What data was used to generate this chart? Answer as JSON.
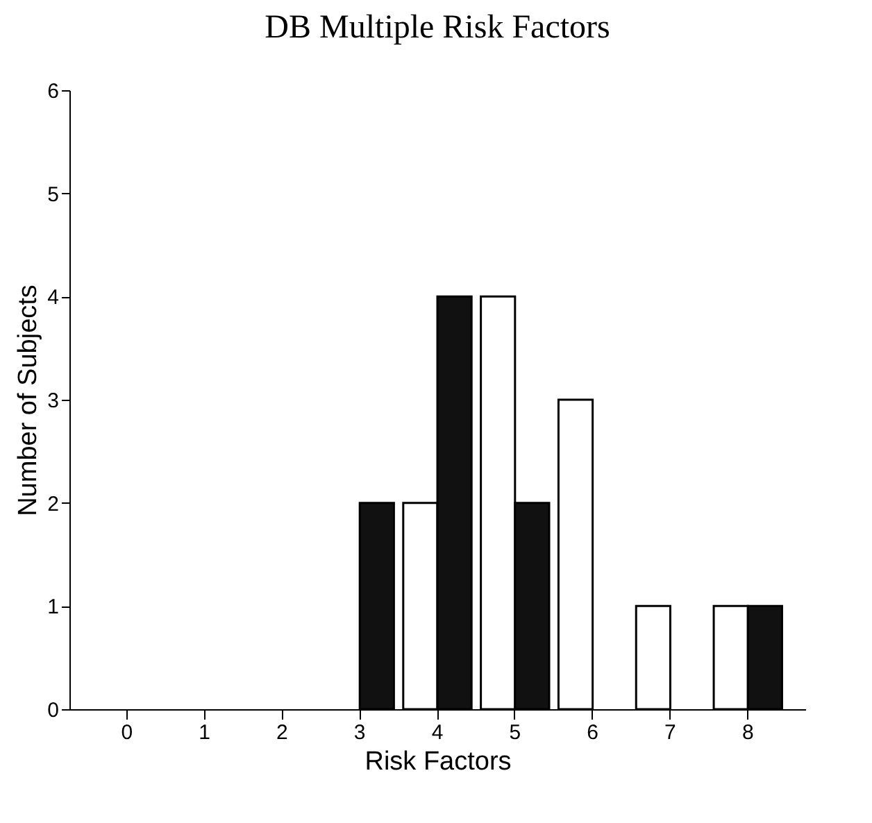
{
  "chart_data": {
    "type": "bar",
    "title": "DB Multiple Risk Factors",
    "xlabel": "Risk Factors",
    "ylabel": "Number of Subjects",
    "categories": [
      "0",
      "1",
      "2",
      "3",
      "4",
      "5",
      "6",
      "7",
      "8"
    ],
    "series": [
      {
        "color": "#ffffff",
        "values": [
          0,
          0,
          0,
          0,
          2,
          4,
          3,
          1,
          1
        ]
      },
      {
        "color": "#111111",
        "values": [
          0,
          0,
          0,
          2,
          4,
          2,
          0,
          0,
          1
        ]
      }
    ],
    "ylim": [
      0,
      6
    ],
    "yticks": [
      0,
      1,
      2,
      3,
      4,
      5,
      6
    ],
    "grid": false,
    "legend": false
  }
}
